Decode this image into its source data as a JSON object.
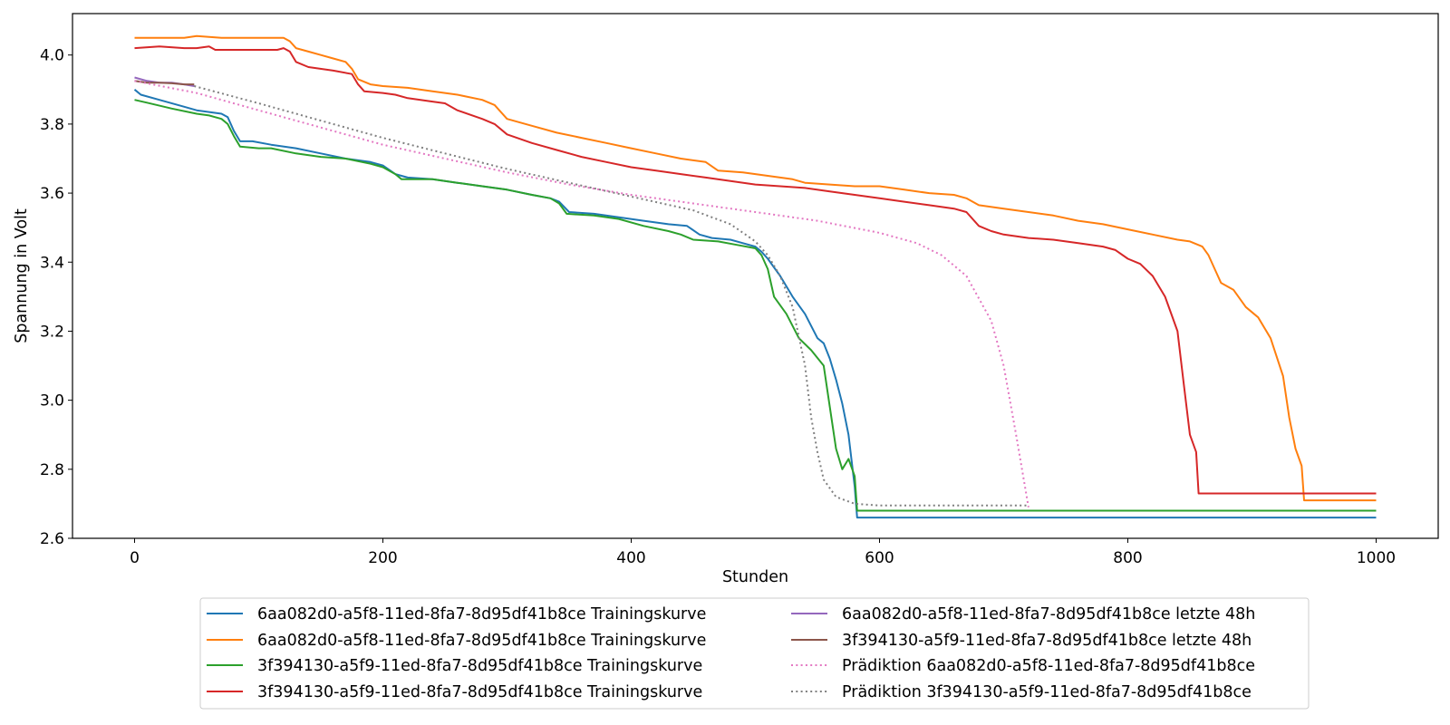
{
  "chart_data": {
    "type": "line",
    "title": "",
    "xlabel": "Stunden",
    "ylabel": "Spannung in Volt",
    "xlim": [
      -50,
      1050
    ],
    "ylim": [
      2.6,
      4.12
    ],
    "xticks": [
      0,
      200,
      400,
      600,
      800,
      1000
    ],
    "yticks": [
      2.6,
      2.8,
      3.0,
      3.2,
      3.4,
      3.6,
      3.8,
      4.0
    ],
    "grid": false,
    "legend_position": "bottom-center",
    "series": [
      {
        "name": "6aa082d0-a5f8-11ed-8fa7-8d95df41b8ce Trainingskurve",
        "color": "#1f77b4",
        "dash": "solid",
        "points": [
          [
            0,
            3.9
          ],
          [
            5,
            3.885
          ],
          [
            20,
            3.87
          ],
          [
            40,
            3.85
          ],
          [
            50,
            3.84
          ],
          [
            60,
            3.835
          ],
          [
            70,
            3.83
          ],
          [
            75,
            3.82
          ],
          [
            80,
            3.78
          ],
          [
            85,
            3.75
          ],
          [
            95,
            3.75
          ],
          [
            110,
            3.74
          ],
          [
            130,
            3.73
          ],
          [
            150,
            3.715
          ],
          [
            170,
            3.7
          ],
          [
            190,
            3.69
          ],
          [
            200,
            3.68
          ],
          [
            210,
            3.655
          ],
          [
            220,
            3.645
          ],
          [
            240,
            3.64
          ],
          [
            260,
            3.63
          ],
          [
            280,
            3.62
          ],
          [
            300,
            3.61
          ],
          [
            320,
            3.595
          ],
          [
            335,
            3.585
          ],
          [
            342,
            3.575
          ],
          [
            350,
            3.545
          ],
          [
            370,
            3.54
          ],
          [
            390,
            3.53
          ],
          [
            410,
            3.52
          ],
          [
            430,
            3.51
          ],
          [
            445,
            3.505
          ],
          [
            455,
            3.48
          ],
          [
            465,
            3.47
          ],
          [
            480,
            3.465
          ],
          [
            490,
            3.455
          ],
          [
            500,
            3.445
          ],
          [
            505,
            3.43
          ],
          [
            510,
            3.41
          ],
          [
            520,
            3.36
          ],
          [
            530,
            3.3
          ],
          [
            540,
            3.25
          ],
          [
            550,
            3.18
          ],
          [
            555,
            3.165
          ],
          [
            560,
            3.12
          ],
          [
            565,
            3.06
          ],
          [
            570,
            2.99
          ],
          [
            575,
            2.9
          ],
          [
            580,
            2.75
          ],
          [
            582,
            2.66
          ],
          [
            1000,
            2.66
          ]
        ]
      },
      {
        "name": "6aa082d0-a5f8-11ed-8fa7-8d95df41b8ce Trainingskurve",
        "color": "#ff7f0e",
        "dash": "solid",
        "points": [
          [
            0,
            4.05
          ],
          [
            40,
            4.05
          ],
          [
            50,
            4.055
          ],
          [
            70,
            4.05
          ],
          [
            100,
            4.05
          ],
          [
            120,
            4.05
          ],
          [
            125,
            4.04
          ],
          [
            130,
            4.02
          ],
          [
            140,
            4.01
          ],
          [
            150,
            4.0
          ],
          [
            160,
            3.99
          ],
          [
            170,
            3.98
          ],
          [
            175,
            3.96
          ],
          [
            180,
            3.93
          ],
          [
            190,
            3.915
          ],
          [
            200,
            3.91
          ],
          [
            220,
            3.905
          ],
          [
            240,
            3.895
          ],
          [
            260,
            3.885
          ],
          [
            280,
            3.87
          ],
          [
            290,
            3.855
          ],
          [
            300,
            3.815
          ],
          [
            320,
            3.795
          ],
          [
            340,
            3.775
          ],
          [
            360,
            3.76
          ],
          [
            380,
            3.745
          ],
          [
            400,
            3.73
          ],
          [
            420,
            3.715
          ],
          [
            440,
            3.7
          ],
          [
            460,
            3.69
          ],
          [
            470,
            3.665
          ],
          [
            490,
            3.66
          ],
          [
            510,
            3.65
          ],
          [
            530,
            3.64
          ],
          [
            540,
            3.63
          ],
          [
            560,
            3.625
          ],
          [
            580,
            3.62
          ],
          [
            600,
            3.62
          ],
          [
            620,
            3.61
          ],
          [
            640,
            3.6
          ],
          [
            660,
            3.595
          ],
          [
            670,
            3.585
          ],
          [
            680,
            3.565
          ],
          [
            700,
            3.555
          ],
          [
            720,
            3.545
          ],
          [
            740,
            3.535
          ],
          [
            760,
            3.52
          ],
          [
            780,
            3.51
          ],
          [
            800,
            3.495
          ],
          [
            820,
            3.48
          ],
          [
            840,
            3.465
          ],
          [
            850,
            3.46
          ],
          [
            860,
            3.445
          ],
          [
            865,
            3.42
          ],
          [
            870,
            3.38
          ],
          [
            875,
            3.34
          ],
          [
            885,
            3.32
          ],
          [
            895,
            3.27
          ],
          [
            905,
            3.24
          ],
          [
            915,
            3.18
          ],
          [
            925,
            3.07
          ],
          [
            930,
            2.95
          ],
          [
            935,
            2.86
          ],
          [
            940,
            2.81
          ],
          [
            942,
            2.71
          ],
          [
            1000,
            2.71
          ]
        ]
      },
      {
        "name": "3f394130-a5f9-11ed-8fa7-8d95df41b8ce Trainingskurve",
        "color": "#2ca02c",
        "dash": "solid",
        "points": [
          [
            0,
            3.87
          ],
          [
            10,
            3.862
          ],
          [
            30,
            3.845
          ],
          [
            50,
            3.83
          ],
          [
            60,
            3.825
          ],
          [
            70,
            3.815
          ],
          [
            75,
            3.8
          ],
          [
            80,
            3.765
          ],
          [
            85,
            3.735
          ],
          [
            100,
            3.73
          ],
          [
            110,
            3.73
          ],
          [
            130,
            3.715
          ],
          [
            150,
            3.705
          ],
          [
            170,
            3.7
          ],
          [
            190,
            3.685
          ],
          [
            200,
            3.675
          ],
          [
            210,
            3.655
          ],
          [
            215,
            3.64
          ],
          [
            240,
            3.64
          ],
          [
            260,
            3.63
          ],
          [
            280,
            3.62
          ],
          [
            300,
            3.61
          ],
          [
            320,
            3.595
          ],
          [
            335,
            3.585
          ],
          [
            342,
            3.57
          ],
          [
            348,
            3.54
          ],
          [
            370,
            3.535
          ],
          [
            390,
            3.525
          ],
          [
            410,
            3.505
          ],
          [
            430,
            3.49
          ],
          [
            440,
            3.48
          ],
          [
            450,
            3.465
          ],
          [
            470,
            3.46
          ],
          [
            485,
            3.45
          ],
          [
            500,
            3.44
          ],
          [
            505,
            3.42
          ],
          [
            510,
            3.38
          ],
          [
            515,
            3.3
          ],
          [
            525,
            3.25
          ],
          [
            535,
            3.18
          ],
          [
            545,
            3.145
          ],
          [
            555,
            3.1
          ],
          [
            560,
            2.98
          ],
          [
            565,
            2.86
          ],
          [
            570,
            2.8
          ],
          [
            575,
            2.83
          ],
          [
            578,
            2.8
          ],
          [
            580,
            2.78
          ],
          [
            582,
            2.68
          ],
          [
            1000,
            2.68
          ]
        ]
      },
      {
        "name": "3f394130-a5f9-11ed-8fa7-8d95df41b8ce Trainingskurve",
        "color": "#d62728",
        "dash": "solid",
        "points": [
          [
            0,
            4.02
          ],
          [
            20,
            4.025
          ],
          [
            40,
            4.02
          ],
          [
            50,
            4.02
          ],
          [
            60,
            4.025
          ],
          [
            65,
            4.015
          ],
          [
            80,
            4.015
          ],
          [
            100,
            4.015
          ],
          [
            115,
            4.015
          ],
          [
            120,
            4.02
          ],
          [
            125,
            4.01
          ],
          [
            130,
            3.98
          ],
          [
            140,
            3.965
          ],
          [
            160,
            3.955
          ],
          [
            175,
            3.945
          ],
          [
            180,
            3.915
          ],
          [
            185,
            3.895
          ],
          [
            200,
            3.89
          ],
          [
            210,
            3.885
          ],
          [
            220,
            3.875
          ],
          [
            240,
            3.865
          ],
          [
            250,
            3.86
          ],
          [
            260,
            3.84
          ],
          [
            280,
            3.815
          ],
          [
            290,
            3.8
          ],
          [
            300,
            3.77
          ],
          [
            320,
            3.745
          ],
          [
            340,
            3.725
          ],
          [
            360,
            3.705
          ],
          [
            380,
            3.69
          ],
          [
            400,
            3.675
          ],
          [
            420,
            3.665
          ],
          [
            440,
            3.655
          ],
          [
            460,
            3.645
          ],
          [
            480,
            3.635
          ],
          [
            500,
            3.625
          ],
          [
            520,
            3.62
          ],
          [
            540,
            3.615
          ],
          [
            560,
            3.605
          ],
          [
            580,
            3.595
          ],
          [
            600,
            3.585
          ],
          [
            620,
            3.575
          ],
          [
            640,
            3.565
          ],
          [
            660,
            3.555
          ],
          [
            670,
            3.545
          ],
          [
            680,
            3.505
          ],
          [
            690,
            3.49
          ],
          [
            700,
            3.48
          ],
          [
            720,
            3.47
          ],
          [
            740,
            3.465
          ],
          [
            760,
            3.455
          ],
          [
            780,
            3.445
          ],
          [
            790,
            3.435
          ],
          [
            800,
            3.41
          ],
          [
            810,
            3.395
          ],
          [
            820,
            3.36
          ],
          [
            830,
            3.3
          ],
          [
            840,
            3.2
          ],
          [
            845,
            3.05
          ],
          [
            850,
            2.9
          ],
          [
            855,
            2.85
          ],
          [
            857,
            2.73
          ],
          [
            1000,
            2.73
          ]
        ]
      },
      {
        "name": "6aa082d0-a5f8-11ed-8fa7-8d95df41b8ce letzte 48h",
        "color": "#9467bd",
        "dash": "solid",
        "points": [
          [
            0,
            3.935
          ],
          [
            10,
            3.925
          ],
          [
            20,
            3.92
          ],
          [
            30,
            3.92
          ],
          [
            40,
            3.915
          ],
          [
            48,
            3.91
          ]
        ]
      },
      {
        "name": "3f394130-a5f9-11ed-8fa7-8d95df41b8ce letzte 48h",
        "color": "#8c564b",
        "dash": "solid",
        "points": [
          [
            0,
            3.925
          ],
          [
            10,
            3.92
          ],
          [
            20,
            3.92
          ],
          [
            30,
            3.918
          ],
          [
            40,
            3.915
          ],
          [
            48,
            3.915
          ]
        ]
      },
      {
        "name": "Prädiktion 6aa082d0-a5f8-11ed-8fa7-8d95df41b8ce",
        "color": "#e377c2",
        "dash": "dotted",
        "points": [
          [
            0,
            3.925
          ],
          [
            50,
            3.89
          ],
          [
            100,
            3.84
          ],
          [
            150,
            3.79
          ],
          [
            200,
            3.74
          ],
          [
            250,
            3.7
          ],
          [
            300,
            3.66
          ],
          [
            350,
            3.625
          ],
          [
            400,
            3.595
          ],
          [
            450,
            3.57
          ],
          [
            500,
            3.545
          ],
          [
            550,
            3.52
          ],
          [
            600,
            3.485
          ],
          [
            630,
            3.455
          ],
          [
            650,
            3.42
          ],
          [
            670,
            3.36
          ],
          [
            690,
            3.23
          ],
          [
            700,
            3.1
          ],
          [
            710,
            2.9
          ],
          [
            720,
            2.69
          ]
        ]
      },
      {
        "name": "Prädiktion 3f394130-a5f9-11ed-8fa7-8d95df41b8ce",
        "color": "#7f7f7f",
        "dash": "dotted",
        "points": [
          [
            48,
            3.91
          ],
          [
            100,
            3.86
          ],
          [
            150,
            3.81
          ],
          [
            200,
            3.76
          ],
          [
            250,
            3.715
          ],
          [
            300,
            3.67
          ],
          [
            350,
            3.63
          ],
          [
            400,
            3.59
          ],
          [
            450,
            3.55
          ],
          [
            480,
            3.51
          ],
          [
            500,
            3.46
          ],
          [
            510,
            3.42
          ],
          [
            520,
            3.36
          ],
          [
            530,
            3.27
          ],
          [
            540,
            3.1
          ],
          [
            545,
            2.95
          ],
          [
            550,
            2.85
          ],
          [
            555,
            2.77
          ],
          [
            565,
            2.72
          ],
          [
            580,
            2.7
          ],
          [
            600,
            2.695
          ],
          [
            720,
            2.695
          ]
        ]
      }
    ]
  }
}
